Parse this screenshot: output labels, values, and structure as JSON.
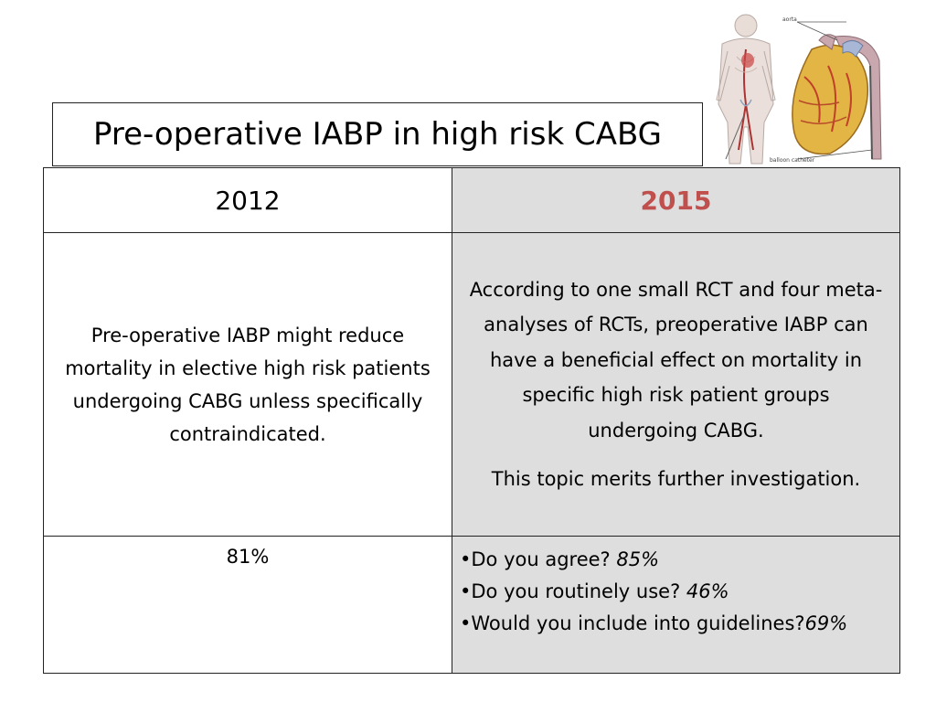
{
  "slide": {
    "title": "Pre-operative IABP in high risk CABG"
  },
  "illustration": {
    "icon": "heart-aorta-balloon-catheter-diagram",
    "labels": {
      "aorta": "aorta",
      "catheter": "balloon catheter"
    }
  },
  "table": {
    "headers": [
      "2012",
      "2015"
    ],
    "recommendation_2012": "Pre-operative IABP might  reduce mortality in elective high risk patients undergoing CABG unless specifically contraindicated.",
    "recommendation_2015": "According to one small RCT and four meta-analyses of RCTs, preoperative IABP can have a beneficial effect on mortality in specific high risk patient groups undergoing CABG.",
    "note_2015": "This topic merits further investigation.",
    "agreement_2012": "81%",
    "survey_2015": [
      {
        "bullet": "•",
        "question": "Do you agree? ",
        "value": "85%"
      },
      {
        "bullet": "•",
        "question": "Do you routinely use?  ",
        "value": "46%"
      },
      {
        "bullet": "•",
        "question": "Would you include into guidelines?",
        "value": "69%"
      }
    ]
  },
  "colors": {
    "accent_2015": "#c0504d",
    "shaded_column": "#dedede",
    "border": "#222222"
  }
}
